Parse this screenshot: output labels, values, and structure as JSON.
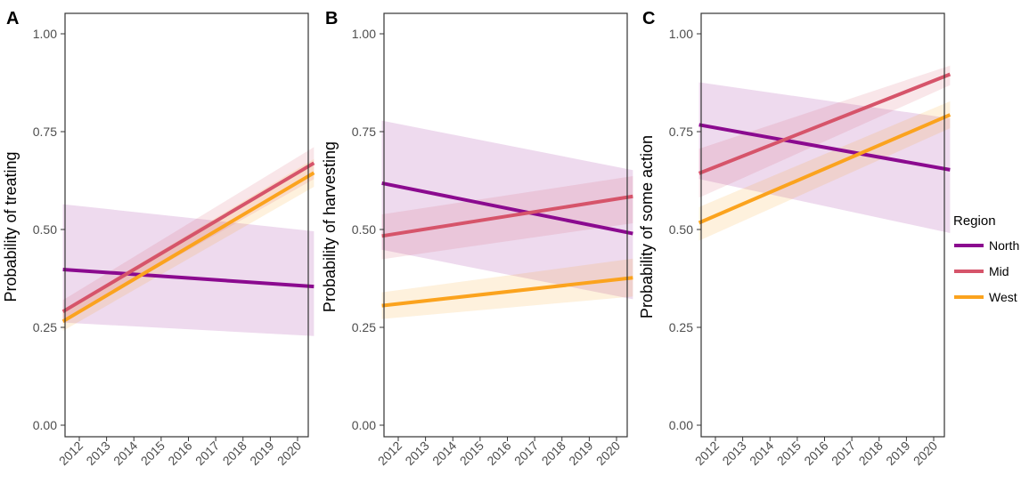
{
  "chart_data": [
    {
      "type": "line",
      "panel_label": "A",
      "ylabel": "Probability of treating",
      "xlabel": "",
      "x": [
        2012,
        2020
      ],
      "ylim": [
        0,
        1
      ],
      "yticks": [
        "0.00",
        "0.25",
        "0.50",
        "0.75",
        "1.00"
      ],
      "grid": false,
      "series": [
        {
          "name": "North",
          "values": [
            0.395,
            0.357
          ],
          "ci_lower": [
            0.26,
            0.23
          ],
          "ci_upper": [
            0.56,
            0.5
          ]
        },
        {
          "name": "Mid",
          "values": [
            0.315,
            0.645
          ],
          "ci_lower": [
            0.29,
            0.605
          ],
          "ci_upper": [
            0.345,
            0.685
          ]
        },
        {
          "name": "West",
          "values": [
            0.29,
            0.62
          ],
          "ci_lower": [
            0.265,
            0.585
          ],
          "ci_upper": [
            0.32,
            0.655
          ]
        }
      ]
    },
    {
      "type": "line",
      "panel_label": "B",
      "ylabel": "Probability of harvesting",
      "xlabel": "",
      "x": [
        2012,
        2020
      ],
      "ylim": [
        0,
        1
      ],
      "yticks": [
        "0.00",
        "0.25",
        "0.50",
        "0.75",
        "1.00"
      ],
      "grid": false,
      "series": [
        {
          "name": "North",
          "values": [
            0.61,
            0.498
          ],
          "ci_lower": [
            0.44,
            0.33
          ],
          "ci_upper": [
            0.77,
            0.66
          ]
        },
        {
          "name": "Mid",
          "values": [
            0.49,
            0.578
          ],
          "ci_lower": [
            0.43,
            0.51
          ],
          "ci_upper": [
            0.545,
            0.63
          ]
        },
        {
          "name": "West",
          "values": [
            0.31,
            0.372
          ],
          "ci_lower": [
            0.275,
            0.325
          ],
          "ci_upper": [
            0.345,
            0.42
          ]
        }
      ]
    },
    {
      "type": "line",
      "panel_label": "C",
      "ylabel": "Probability of some action",
      "xlabel": "",
      "x": [
        2012,
        2020
      ],
      "ylim": [
        0,
        1
      ],
      "yticks": [
        "0.00",
        "0.25",
        "0.50",
        "0.75",
        "1.00"
      ],
      "grid": false,
      "series": [
        {
          "name": "North",
          "values": [
            0.76,
            0.66
          ],
          "ci_lower": [
            0.62,
            0.5
          ],
          "ci_upper": [
            0.87,
            0.79
          ]
        },
        {
          "name": "Mid",
          "values": [
            0.66,
            0.88
          ],
          "ci_lower": [
            0.6,
            0.85
          ],
          "ci_upper": [
            0.72,
            0.905
          ]
        },
        {
          "name": "West",
          "values": [
            0.535,
            0.775
          ],
          "ci_lower": [
            0.49,
            0.74
          ],
          "ci_upper": [
            0.575,
            0.81
          ]
        }
      ]
    }
  ],
  "x_tick_labels": [
    "2012",
    "2013",
    "2014",
    "2015",
    "2016",
    "2017",
    "2018",
    "2019",
    "2020"
  ],
  "legend": {
    "title": "Region",
    "placement": "right",
    "items": [
      {
        "name": "North",
        "color": "#8b0a8f"
      },
      {
        "name": "Mid",
        "color": "#d6546a"
      },
      {
        "name": "West",
        "color": "#fba31e"
      }
    ]
  },
  "colors": {
    "North": "#8b0a8f",
    "Mid": "#d6546a",
    "West": "#fba31e"
  }
}
